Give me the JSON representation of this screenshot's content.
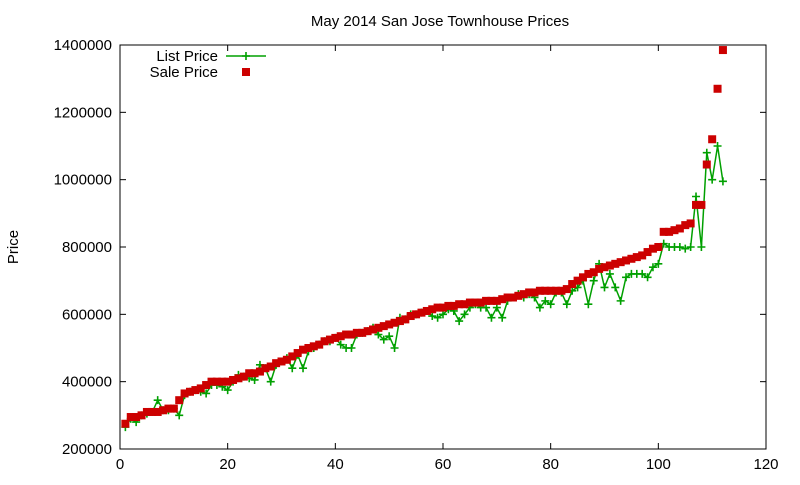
{
  "chart_data": {
    "type": "scatter",
    "title": "May 2014 San Jose Townhouse Prices",
    "xlabel": "",
    "ylabel": "Price",
    "xlim": [
      0,
      120
    ],
    "ylim": [
      200000,
      1400000
    ],
    "x_ticks": [
      {
        "value": 0,
        "label": "0"
      },
      {
        "value": 20,
        "label": "20"
      },
      {
        "value": 40,
        "label": "40"
      },
      {
        "value": 60,
        "label": "60"
      },
      {
        "value": 80,
        "label": "80"
      },
      {
        "value": 100,
        "label": "100"
      },
      {
        "value": 120,
        "label": "120"
      }
    ],
    "y_ticks": [
      {
        "value": 200000,
        "label": "200000"
      },
      {
        "value": 400000,
        "label": "400000"
      },
      {
        "value": 600000,
        "label": "600000"
      },
      {
        "value": 800000,
        "label": "800000"
      },
      {
        "value": 1000000,
        "label": "1000000"
      },
      {
        "value": 1200000,
        "label": "1200000"
      },
      {
        "value": 1400000,
        "label": "1400000"
      }
    ],
    "grid": false,
    "legend_position": "top-left",
    "colors": {
      "list": "#00a000",
      "sale": "#cc0000"
    },
    "series": [
      {
        "name": "List Price",
        "style": "linespoints",
        "x": [
          1,
          2,
          3,
          4,
          5,
          6,
          7,
          8,
          9,
          10,
          11,
          12,
          13,
          14,
          15,
          16,
          17,
          18,
          19,
          20,
          21,
          22,
          23,
          24,
          25,
          26,
          27,
          28,
          29,
          30,
          31,
          32,
          33,
          34,
          35,
          36,
          37,
          38,
          39,
          40,
          41,
          42,
          43,
          44,
          45,
          46,
          47,
          48,
          49,
          50,
          51,
          52,
          53,
          54,
          55,
          56,
          57,
          58,
          59,
          60,
          61,
          62,
          63,
          64,
          65,
          66,
          67,
          68,
          69,
          70,
          71,
          72,
          73,
          74,
          75,
          76,
          77,
          78,
          79,
          80,
          81,
          82,
          83,
          84,
          85,
          86,
          87,
          88,
          89,
          90,
          91,
          92,
          93,
          94,
          95,
          96,
          97,
          98,
          99,
          100,
          101,
          102,
          103,
          104,
          105,
          106,
          107,
          108,
          109,
          110,
          111,
          112
        ],
        "y": [
          265000,
          290000,
          280000,
          300000,
          305000,
          310000,
          345000,
          315000,
          315000,
          320000,
          300000,
          360000,
          370000,
          375000,
          370000,
          365000,
          390000,
          390000,
          385000,
          375000,
          400000,
          420000,
          415000,
          410000,
          405000,
          450000,
          440000,
          400000,
          450000,
          460000,
          470000,
          440000,
          480000,
          440000,
          490000,
          500000,
          510000,
          520000,
          520000,
          530000,
          510000,
          500000,
          500000,
          540000,
          545000,
          550000,
          560000,
          540000,
          525000,
          535000,
          500000,
          590000,
          585000,
          600000,
          600000,
          605000,
          610000,
          595000,
          590000,
          600000,
          615000,
          610000,
          580000,
          600000,
          620000,
          630000,
          620000,
          620000,
          590000,
          620000,
          590000,
          640000,
          650000,
          660000,
          650000,
          660000,
          650000,
          620000,
          640000,
          630000,
          665000,
          665000,
          630000,
          670000,
          680000,
          700000,
          630000,
          700000,
          750000,
          680000,
          720000,
          680000,
          640000,
          710000,
          720000,
          720000,
          720000,
          710000,
          740000,
          750000,
          810000,
          800000,
          800000,
          800000,
          795000,
          800000,
          950000,
          800000,
          1080000,
          1000000,
          1100000,
          995000
        ]
      },
      {
        "name": "Sale Price",
        "style": "points",
        "x": [
          1,
          2,
          3,
          4,
          5,
          6,
          7,
          8,
          9,
          10,
          11,
          12,
          13,
          14,
          15,
          16,
          17,
          18,
          19,
          20,
          21,
          22,
          23,
          24,
          25,
          26,
          27,
          28,
          29,
          30,
          31,
          32,
          33,
          34,
          35,
          36,
          37,
          38,
          39,
          40,
          41,
          42,
          43,
          44,
          45,
          46,
          47,
          48,
          49,
          50,
          51,
          52,
          53,
          54,
          55,
          56,
          57,
          58,
          59,
          60,
          61,
          62,
          63,
          64,
          65,
          66,
          67,
          68,
          69,
          70,
          71,
          72,
          73,
          74,
          75,
          76,
          77,
          78,
          79,
          80,
          81,
          82,
          83,
          84,
          85,
          86,
          87,
          88,
          89,
          90,
          91,
          92,
          93,
          94,
          95,
          96,
          97,
          98,
          99,
          100,
          101,
          102,
          103,
          104,
          105,
          106,
          107,
          108,
          109,
          110,
          111,
          112
        ],
        "y": [
          275000,
          295000,
          295000,
          300000,
          310000,
          310000,
          310000,
          315000,
          320000,
          320000,
          345000,
          365000,
          370000,
          375000,
          380000,
          390000,
          400000,
          400000,
          400000,
          400000,
          405000,
          410000,
          415000,
          425000,
          425000,
          430000,
          440000,
          445000,
          455000,
          460000,
          465000,
          475000,
          485000,
          495000,
          500000,
          505000,
          510000,
          520000,
          525000,
          530000,
          535000,
          540000,
          540000,
          545000,
          545000,
          550000,
          555000,
          560000,
          565000,
          570000,
          575000,
          580000,
          585000,
          595000,
          600000,
          605000,
          610000,
          615000,
          620000,
          620000,
          625000,
          625000,
          630000,
          630000,
          635000,
          635000,
          635000,
          640000,
          640000,
          640000,
          645000,
          650000,
          650000,
          655000,
          660000,
          665000,
          665000,
          670000,
          670000,
          670000,
          670000,
          670000,
          675000,
          690000,
          700000,
          710000,
          720000,
          725000,
          735000,
          740000,
          745000,
          750000,
          755000,
          760000,
          765000,
          770000,
          775000,
          785000,
          795000,
          800000,
          845000,
          845000,
          850000,
          855000,
          865000,
          870000,
          925000,
          925000,
          1045000,
          1120000,
          1270000,
          1385000
        ]
      }
    ]
  }
}
